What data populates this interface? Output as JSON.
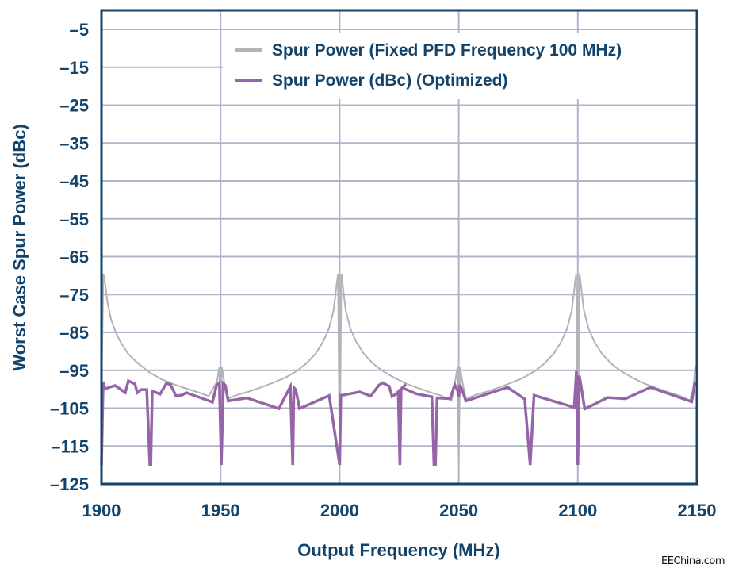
{
  "chart_data": {
    "type": "line",
    "title": "",
    "xlabel": "Output Frequency (MHz)",
    "ylabel": "Worst Case Spur Power (dBc)",
    "xlim": [
      1900,
      2150
    ],
    "ylim": [
      -125,
      0
    ],
    "x_ticks": [
      1900,
      1950,
      2000,
      2050,
      2100,
      2150
    ],
    "x_tick_labels": [
      "1900",
      "1950",
      "2000",
      "2050",
      "2100",
      "2150"
    ],
    "y_ticks": [
      -5,
      -15,
      -25,
      -35,
      -45,
      -55,
      -65,
      -75,
      -85,
      -95,
      -105,
      -115,
      -125
    ],
    "y_tick_labels": [
      "–5",
      "–15",
      "–25",
      "–35",
      "–45",
      "–55",
      "–65",
      "–75",
      "–85",
      "–95",
      "–105",
      "–115",
      "–125"
    ],
    "grid": true,
    "legend_position": "top-right",
    "series": [
      {
        "name": "Spur Power (Fixed PFD Frequency 100 MHz)",
        "color": "#b3b3b5",
        "x": [
          1900,
          1900.8,
          1901.5,
          1902.5,
          1904,
          1906,
          1908,
          1911,
          1915,
          1920,
          1925,
          1930,
          1935,
          1940,
          1945,
          1948.5,
          1949.5,
          1950,
          1950.5,
          1951.5,
          1953,
          1957,
          1962,
          1967,
          1972,
          1977,
          1982,
          1986,
          1990,
          1993,
          1995.5,
          1997.5,
          1998.8,
          1999.3,
          2000,
          2000.7,
          2001.2,
          2002.5,
          2004.5,
          2007,
          2010,
          2014,
          2018,
          2023,
          2028,
          2033,
          2038,
          2043,
          2047,
          2048.5,
          2049.5,
          2050,
          2050.5,
          2051.5,
          2053,
          2057,
          2062,
          2067,
          2072,
          2077,
          2082,
          2086,
          2090,
          2093,
          2095.5,
          2097.5,
          2098.8,
          2099.3,
          2100,
          2100.7,
          2101.2,
          2102.5,
          2104.5,
          2107,
          2110,
          2114,
          2118,
          2123,
          2128,
          2133,
          2138,
          2143,
          2147,
          2148.5,
          2149.3,
          2150
        ],
        "values": [
          -100,
          -69.5,
          -72,
          -77,
          -81.5,
          -85,
          -87.5,
          -90.5,
          -93,
          -95.5,
          -97.3,
          -98.6,
          -99.7,
          -100.7,
          -101.8,
          -98,
          -94,
          -120,
          -94,
          -98,
          -102.5,
          -101.5,
          -100.6,
          -99.5,
          -98.3,
          -97,
          -95.2,
          -93.2,
          -90.5,
          -87.5,
          -84,
          -79,
          -72,
          -69.5,
          -120,
          -69.5,
          -72,
          -79,
          -84,
          -87.5,
          -90.5,
          -93.2,
          -95.2,
          -97,
          -98.5,
          -99.7,
          -100.8,
          -101.8,
          -103,
          -98,
          -94,
          -120,
          -94,
          -98,
          -102.5,
          -101.5,
          -100.6,
          -99.5,
          -98.3,
          -97,
          -95.2,
          -93.2,
          -90.5,
          -87.5,
          -84,
          -79,
          -72,
          -69.5,
          -120,
          -69.5,
          -72,
          -79,
          -84,
          -87.5,
          -90.5,
          -93.2,
          -95.2,
          -97,
          -98.5,
          -99.7,
          -100.8,
          -101.8,
          -103,
          -100,
          -94,
          -94
        ]
      },
      {
        "name": "Spur Power (dBc) (Optimized)",
        "color": "#9565a8",
        "x": [
          1900,
          1900.7,
          1901.5,
          1905.7,
          1910,
          1911.3,
          1914,
          1915,
          1916.6,
          1919,
          1920.3,
          1920.7,
          1921.3,
          1924.6,
          1927.3,
          1929,
          1931.3,
          1934,
          1935.6,
          1946.6,
          1948.3,
          1949.5,
          1950.3,
          1951.2,
          1952,
          1953.2,
          1961,
          1974.5,
          1979.3,
          1980.3,
          1980.8,
          1981.6,
          1983.2,
          1995.6,
          2000,
          2000.5,
          2001,
          2008.4,
          2013,
          2016.5,
          2018,
          2020.8,
          2022,
          2023.4,
          2027.8,
          2024.6,
          2025.3,
          2025.8,
          2026.6,
          2032.2,
          2038.7,
          2039.6,
          2040.2,
          2040.9,
          2046.4,
          2048.3,
          2049.5,
          2050,
          2050.5,
          2051.5,
          2053,
          2070.5,
          2077.7,
          2080,
          2081.6,
          2098.5,
          2099.4,
          2100,
          2100.6,
          2101.2,
          2102.9,
          2112.5,
          2120,
          2130.5,
          2147.8,
          2149,
          2150
        ],
        "values": [
          -120,
          -98,
          -99.9,
          -99.0,
          -100.9,
          -97.8,
          -98.6,
          -100.9,
          -100.1,
          -100.1,
          -120,
          -120,
          -100.5,
          -101.3,
          -98.4,
          -98.8,
          -101.8,
          -101.5,
          -100.9,
          -103.4,
          -99.0,
          -98.3,
          -120,
          -98.5,
          -99.0,
          -103.1,
          -102.3,
          -105.1,
          -99.3,
          -120,
          -99.6,
          -100.2,
          -105.1,
          -101.7,
          -120,
          -101.6,
          -101.6,
          -100.7,
          -101.8,
          -98.9,
          -98.3,
          -99.2,
          -101.9,
          -101.4,
          -98.7,
          -100.7,
          -120,
          -99.9,
          -99.7,
          -101.2,
          -102.0,
          -120,
          -120,
          -102.3,
          -102.5,
          -98.8,
          -100.3,
          -102,
          -98.8,
          -100.3,
          -103.1,
          -99.5,
          -102.6,
          -120,
          -101.6,
          -104.8,
          -95.2,
          -120,
          -96.4,
          -98.5,
          -105.2,
          -102.2,
          -102.5,
          -99.5,
          -103.3,
          -98.5,
          -98.5
        ]
      }
    ]
  },
  "watermark": "EEChina.com"
}
